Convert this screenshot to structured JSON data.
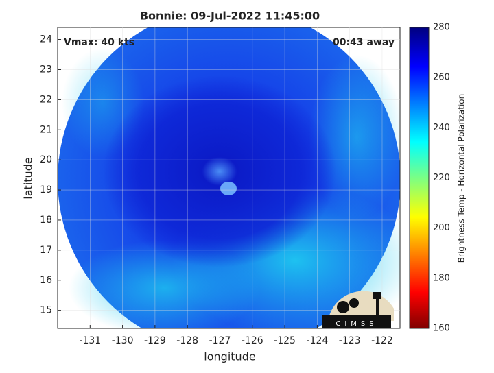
{
  "chart_data": {
    "type": "map",
    "title": "Bonnie: 09-Jul-2022 11:45:00",
    "annotations": [
      "Vmax: 40 kts",
      "00:43 away"
    ],
    "xlabel": "longitude",
    "ylabel": "latitude",
    "xlim": [
      -132,
      -121.45
    ],
    "ylim": [
      14.4,
      24.4
    ],
    "xticks": [
      -131,
      -130,
      -129,
      -128,
      -127,
      -126,
      -125,
      -124,
      -123,
      -122
    ],
    "yticks": [
      15,
      16,
      17,
      18,
      19,
      20,
      21,
      22,
      23,
      24
    ],
    "grid": true,
    "colorbar": {
      "label": "Brightness Temp - Horizontal Polarization",
      "lim": [
        160,
        280
      ],
      "ticks": [
        160,
        180,
        200,
        220,
        240,
        260,
        280
      ]
    },
    "logo_text": "CIMSS"
  }
}
